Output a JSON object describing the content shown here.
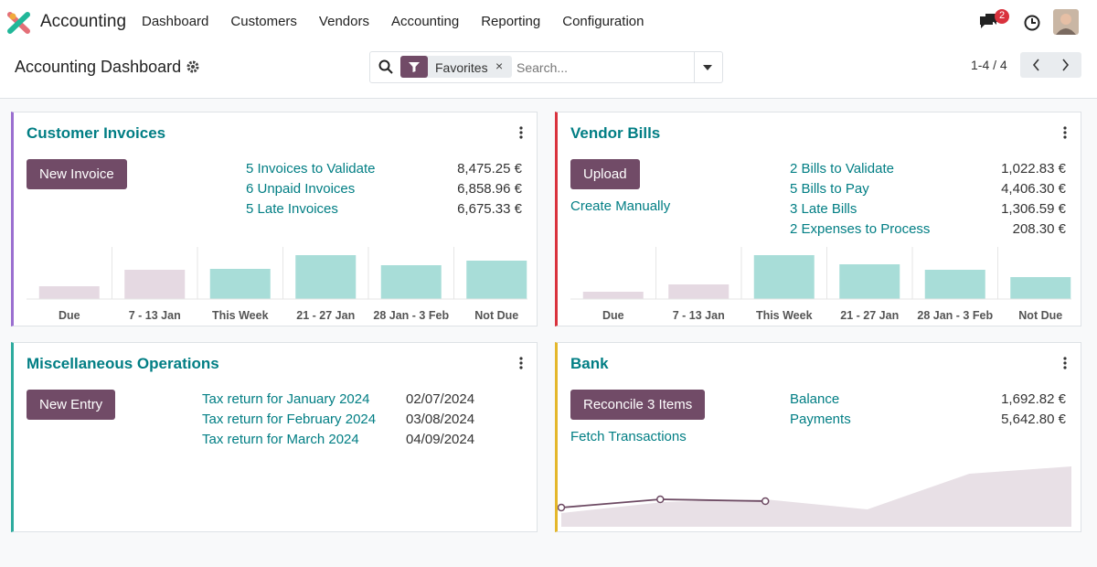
{
  "navbar": {
    "app": "Accounting",
    "menu": [
      "Dashboard",
      "Customers",
      "Vendors",
      "Accounting",
      "Reporting",
      "Configuration"
    ],
    "notifications": 2
  },
  "control_panel": {
    "title": "Accounting Dashboard",
    "facet": "Favorites",
    "search_placeholder": "Search...",
    "pager": "1-4 / 4"
  },
  "journals": [
    {
      "title": "Customer Invoices",
      "color": "#9b6fd0",
      "button": "New Invoice",
      "stats": [
        {
          "label": "5 Invoices to Validate",
          "value": "8,475.25 €"
        },
        {
          "label": "6 Unpaid Invoices",
          "value": "6,858.96 €"
        },
        {
          "label": "5 Late Invoices",
          "value": "6,675.33 €"
        }
      ],
      "graph": {
        "type": "bar",
        "categories": [
          "Due",
          "7 - 13 Jan",
          "This Week",
          "21 - 27 Jan",
          "28 Jan - 3 Feb",
          "Not Due"
        ],
        "values": [
          14,
          32,
          33,
          48,
          37,
          42
        ],
        "colors": [
          "#e5d9e2",
          "#e5d9e2",
          "#a8ddd8",
          "#a8ddd8",
          "#a8ddd8",
          "#a8ddd8"
        ],
        "ylim": [
          0,
          57
        ]
      }
    },
    {
      "title": "Vendor Bills",
      "color": "#d9323d",
      "button": "Upload",
      "link": "Create Manually",
      "stats": [
        {
          "label": "2 Bills to Validate",
          "value": "1,022.83 €"
        },
        {
          "label": "5 Bills to Pay",
          "value": "4,406.30 €"
        },
        {
          "label": "3 Late Bills",
          "value": "1,306.59 €"
        },
        {
          "label": "2 Expenses to Process",
          "value": "208.30 €"
        }
      ],
      "graph": {
        "type": "bar",
        "categories": [
          "Due",
          "7 - 13 Jan",
          "This Week",
          "21 - 27 Jan",
          "28 Jan - 3 Feb",
          "Not Due"
        ],
        "values": [
          8,
          16,
          48,
          38,
          32,
          24
        ],
        "colors": [
          "#e5d9e2",
          "#e5d9e2",
          "#a8ddd8",
          "#a8ddd8",
          "#a8ddd8",
          "#a8ddd8"
        ],
        "ylim": [
          0,
          57
        ]
      }
    },
    {
      "title": "Miscellaneous Operations",
      "color": "#2eab9e",
      "button": "New Entry",
      "stats": [
        {
          "label": "Tax return for January 2024",
          "value": "02/07/2024"
        },
        {
          "label": "Tax return for February 2024",
          "value": "03/08/2024"
        },
        {
          "label": "Tax return for March 2024",
          "value": "04/09/2024"
        }
      ]
    },
    {
      "title": "Bank",
      "color": "#e4b72b",
      "button": "Reconcile 3 Items",
      "link": "Fetch Transactions",
      "stats": [
        {
          "label": "Balance",
          "value": "1,692.82 €"
        },
        {
          "label": "Payments",
          "value": "5,642.80 €"
        }
      ],
      "graph": {
        "type": "area",
        "x": [
          0,
          1,
          2,
          3,
          4,
          5
        ],
        "values": [
          15,
          27,
          30,
          19,
          58,
          66
        ],
        "color": "#e8e0e6",
        "line": {
          "x": [
            0,
            0.97,
            2.0
          ],
          "values": [
            21,
            30,
            28
          ],
          "color": "#6d4a63"
        },
        "xlim": [
          0,
          5
        ],
        "ylim": [
          0,
          80
        ]
      }
    }
  ]
}
